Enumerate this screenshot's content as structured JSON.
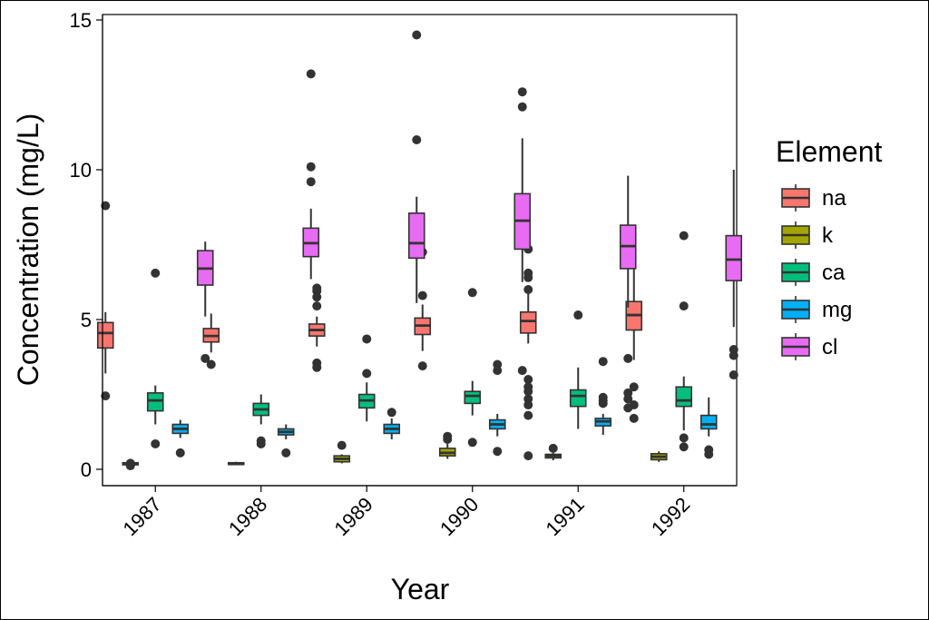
{
  "chart_data": {
    "type": "box",
    "xlabel": "Year",
    "ylabel": "Concentration (mg/L)",
    "ylim": [
      0,
      15
    ],
    "yticks": [
      0,
      5,
      10,
      15
    ],
    "categories": [
      "1987",
      "1988",
      "1989",
      "1990",
      "1991",
      "1992"
    ],
    "legend": {
      "title": "Element",
      "position": "right"
    },
    "series": [
      {
        "name": "na",
        "color": "#F8766D",
        "boxes": [
          {
            "year": "1987",
            "min": 3.2,
            "q1": 4.05,
            "median": 4.55,
            "q3": 4.9,
            "max": 5.25,
            "outliers": [
              8.8,
              2.45
            ]
          },
          {
            "year": "1988",
            "min": 3.9,
            "q1": 4.25,
            "median": 4.45,
            "q3": 4.7,
            "max": 5.2,
            "outliers": [
              3.5
            ]
          },
          {
            "year": "1989",
            "min": 4.1,
            "q1": 4.45,
            "median": 4.65,
            "q3": 4.85,
            "max": 5.1,
            "outliers": [
              6.05,
              5.95,
              5.75,
              5.45,
              3.55,
              3.4
            ]
          },
          {
            "year": "1990",
            "min": 3.95,
            "q1": 4.5,
            "median": 4.8,
            "q3": 5.05,
            "max": 5.5,
            "outliers": [
              7.25,
              5.8,
              3.45
            ]
          },
          {
            "year": "1991",
            "min": 4.2,
            "q1": 4.55,
            "median": 4.95,
            "q3": 5.25,
            "max": 5.9,
            "outliers": [
              7.35,
              6.55,
              6.4,
              6.0,
              3.0,
              2.75,
              2.6,
              2.35,
              2.15,
              1.8,
              0.45
            ]
          },
          {
            "year": "1992",
            "min": 3.65,
            "q1": 4.65,
            "median": 5.15,
            "q3": 5.6,
            "max": 6.9,
            "outliers": [
              2.75,
              2.15,
              1.7
            ]
          }
        ]
      },
      {
        "name": "k",
        "color": "#A3A500",
        "boxes": [
          {
            "year": "1987",
            "min": 0.1,
            "q1": 0.15,
            "median": 0.18,
            "q3": 0.22,
            "max": 0.25,
            "outliers": [
              0.12,
              0.2
            ]
          },
          {
            "year": "1988",
            "min": 0.15,
            "q1": 0.18,
            "median": 0.2,
            "q3": 0.22,
            "max": 0.25,
            "outliers": []
          },
          {
            "year": "1989",
            "min": 0.2,
            "q1": 0.25,
            "median": 0.35,
            "q3": 0.45,
            "max": 0.5,
            "outliers": [
              0.8
            ]
          },
          {
            "year": "1990",
            "min": 0.35,
            "q1": 0.45,
            "median": 0.55,
            "q3": 0.7,
            "max": 0.85,
            "outliers": [
              1.1,
              1.0
            ]
          },
          {
            "year": "1991",
            "min": 0.3,
            "q1": 0.38,
            "median": 0.45,
            "q3": 0.5,
            "max": 0.55,
            "outliers": [
              0.7
            ]
          },
          {
            "year": "1992",
            "min": 0.25,
            "q1": 0.32,
            "median": 0.42,
            "q3": 0.52,
            "max": 0.6,
            "outliers": []
          }
        ]
      },
      {
        "name": "ca",
        "color": "#00BF7D",
        "boxes": [
          {
            "year": "1987",
            "min": 1.5,
            "q1": 1.95,
            "median": 2.3,
            "q3": 2.55,
            "max": 2.8,
            "outliers": [
              6.55,
              0.85
            ]
          },
          {
            "year": "1988",
            "min": 1.5,
            "q1": 1.8,
            "median": 2.0,
            "q3": 2.2,
            "max": 2.5,
            "outliers": [
              0.95,
              0.85
            ]
          },
          {
            "year": "1989",
            "min": 1.6,
            "q1": 2.05,
            "median": 2.3,
            "q3": 2.5,
            "max": 2.9,
            "outliers": [
              4.35,
              3.2
            ]
          },
          {
            "year": "1990",
            "min": 1.8,
            "q1": 2.2,
            "median": 2.45,
            "q3": 2.6,
            "max": 2.95,
            "outliers": [
              5.9,
              0.9
            ]
          },
          {
            "year": "1991",
            "min": 1.35,
            "q1": 2.1,
            "median": 2.45,
            "q3": 2.65,
            "max": 3.4,
            "outliers": [
              5.15
            ]
          },
          {
            "year": "1992",
            "min": 1.3,
            "q1": 2.1,
            "median": 2.3,
            "q3": 2.75,
            "max": 3.1,
            "outliers": [
              7.8,
              5.45,
              1.05,
              0.75
            ]
          }
        ]
      },
      {
        "name": "mg",
        "color": "#00B0F6",
        "boxes": [
          {
            "year": "1987",
            "min": 1.05,
            "q1": 1.2,
            "median": 1.35,
            "q3": 1.5,
            "max": 1.65,
            "outliers": [
              0.55
            ]
          },
          {
            "year": "1988",
            "min": 1.0,
            "q1": 1.15,
            "median": 1.25,
            "q3": 1.35,
            "max": 1.5,
            "outliers": [
              0.55
            ]
          },
          {
            "year": "1989",
            "min": 1.0,
            "q1": 1.2,
            "median": 1.35,
            "q3": 1.5,
            "max": 1.7,
            "outliers": [
              1.9
            ]
          },
          {
            "year": "1990",
            "min": 1.1,
            "q1": 1.35,
            "median": 1.5,
            "q3": 1.65,
            "max": 1.85,
            "outliers": [
              3.5,
              3.3,
              0.6
            ]
          },
          {
            "year": "1991",
            "min": 1.15,
            "q1": 1.45,
            "median": 1.6,
            "q3": 1.7,
            "max": 1.85,
            "outliers": [
              3.6,
              2.4,
              2.3,
              2.2
            ]
          },
          {
            "year": "1992",
            "min": 1.1,
            "q1": 1.35,
            "median": 1.5,
            "q3": 1.8,
            "max": 2.4,
            "outliers": [
              0.65,
              0.5
            ]
          }
        ]
      },
      {
        "name": "cl",
        "color": "#E76BF3",
        "boxes": [
          {
            "year": "1987",
            "min": 5.1,
            "q1": 6.15,
            "median": 6.7,
            "q3": 7.3,
            "max": 7.6,
            "outliers": [
              3.7
            ]
          },
          {
            "year": "1988",
            "min": 6.35,
            "q1": 7.1,
            "median": 7.55,
            "q3": 8.05,
            "max": 8.7,
            "outliers": [
              13.2,
              10.1,
              9.6
            ]
          },
          {
            "year": "1989",
            "min": 5.55,
            "q1": 7.05,
            "median": 7.55,
            "q3": 8.55,
            "max": 9.1,
            "outliers": [
              14.5,
              11.0
            ]
          },
          {
            "year": "1990",
            "min": 6.25,
            "q1": 7.35,
            "median": 8.3,
            "q3": 9.2,
            "max": 11.05,
            "outliers": [
              12.6,
              12.1,
              3.3
            ]
          },
          {
            "year": "1991",
            "min": 5.4,
            "q1": 6.7,
            "median": 7.45,
            "q3": 8.15,
            "max": 9.8,
            "outliers": [
              3.7,
              2.55,
              2.35,
              2.05
            ]
          },
          {
            "year": "1992",
            "min": 4.75,
            "q1": 6.3,
            "median": 7.0,
            "q3": 7.8,
            "max": 10.0,
            "outliers": [
              4.0,
              3.8,
              3.15
            ]
          }
        ]
      }
    ]
  }
}
